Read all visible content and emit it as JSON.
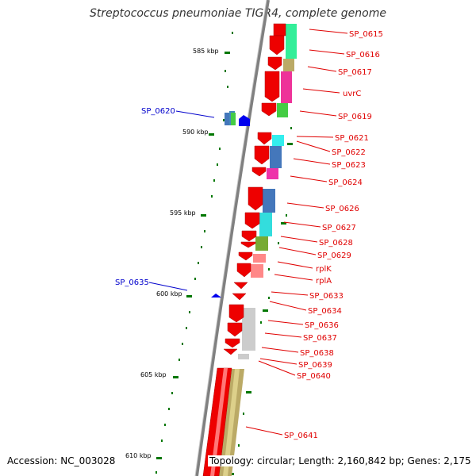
{
  "title": "Streptococcus pneumoniae TIGR4, complete genome",
  "footer": {
    "accession": "Accession: NC_003028",
    "topology": "Topology: circular; Length: 2,160,842 bp; Genes: 2,175"
  },
  "colors": {
    "forward_label": "#e00000",
    "reverse_label": "#0000cc",
    "forward_gene": "#ee0000",
    "reverse_gene": "#0000ee",
    "tick": "#007700",
    "backbone": "#808080"
  },
  "kbp_ticks": [
    "585 kbp",
    "590 kbp",
    "595 kbp",
    "600 kbp",
    "605 kbp",
    "610 kbp"
  ],
  "genes_right": [
    "SP_0615",
    "SP_0616",
    "SP_0617",
    "uvrC",
    "SP_0619",
    "SP_0621",
    "SP_0622",
    "SP_0623",
    "SP_0624",
    "SP_0626",
    "SP_0627",
    "SP_0628",
    "SP_0629",
    "rplK",
    "rplA",
    "SP_0633",
    "SP_0634",
    "SP_0636",
    "SP_0637",
    "SP_0638",
    "SP_0639",
    "SP_0640",
    "SP_0641"
  ],
  "genes_left": [
    "SP_0620",
    "SP_0635"
  ]
}
